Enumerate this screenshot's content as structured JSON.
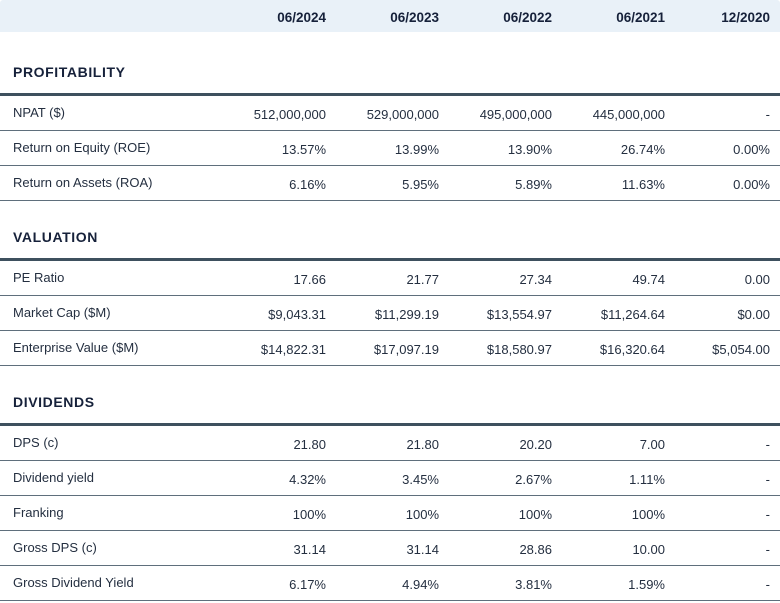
{
  "chart_data": {
    "type": "table",
    "columns": [
      "06/2024",
      "06/2023",
      "06/2022",
      "06/2021",
      "12/2020"
    ],
    "sections": [
      {
        "title": "PROFITABILITY",
        "rows": [
          {
            "label": "NPAT ($)",
            "values": [
              "512,000,000",
              "529,000,000",
              "495,000,000",
              "445,000,000",
              "-"
            ]
          },
          {
            "label": "Return on Equity (ROE)",
            "values": [
              "13.57%",
              "13.99%",
              "13.90%",
              "26.74%",
              "0.00%"
            ]
          },
          {
            "label": "Return on Assets (ROA)",
            "values": [
              "6.16%",
              "5.95%",
              "5.89%",
              "11.63%",
              "0.00%"
            ]
          }
        ]
      },
      {
        "title": "VALUATION",
        "rows": [
          {
            "label": "PE Ratio",
            "values": [
              "17.66",
              "21.77",
              "27.34",
              "49.74",
              "0.00"
            ]
          },
          {
            "label": "Market Cap ($M)",
            "values": [
              "$9,043.31",
              "$11,299.19",
              "$13,554.97",
              "$11,264.64",
              "$0.00"
            ]
          },
          {
            "label": "Enterprise Value ($M)",
            "values": [
              "$14,822.31",
              "$17,097.19",
              "$18,580.97",
              "$16,320.64",
              "$5,054.00"
            ]
          }
        ]
      },
      {
        "title": "DIVIDENDS",
        "rows": [
          {
            "label": "DPS (c)",
            "values": [
              "21.80",
              "21.80",
              "20.20",
              "7.00",
              "-"
            ]
          },
          {
            "label": "Dividend yield",
            "values": [
              "4.32%",
              "3.45%",
              "2.67%",
              "1.11%",
              "-"
            ]
          },
          {
            "label": "Franking",
            "values": [
              "100%",
              "100%",
              "100%",
              "100%",
              "-"
            ]
          },
          {
            "label": "Gross DPS (c)",
            "values": [
              "31.14",
              "31.14",
              "28.86",
              "10.00",
              "-"
            ]
          },
          {
            "label": "Gross Dividend Yield",
            "values": [
              "6.17%",
              "4.94%",
              "3.81%",
              "1.59%",
              "-"
            ]
          }
        ]
      }
    ]
  },
  "colors": {
    "header_bg": "#e9f1f8",
    "heading_text": "#16213a",
    "body_text": "#242f40",
    "thick_border": "#3e505e",
    "thin_border": "#5f6f7c"
  }
}
